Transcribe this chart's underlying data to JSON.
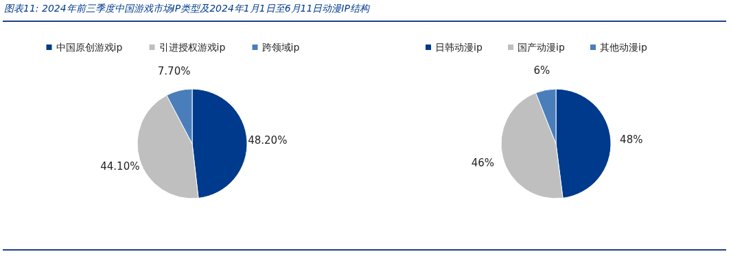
{
  "chart_data": [
    {
      "type": "pie",
      "title": "图表11:  2024年前三季度中国游戏市场IP类型及2024年1月1日至6月11日动漫IP结构",
      "categories": [
        "中国原创游戏ip",
        "引进授权游戏ip",
        "跨领域ip"
      ],
      "values": [
        48.2,
        44.1,
        7.7
      ],
      "colors": [
        "#003a8c",
        "#bfbfbf",
        "#4a7ebb"
      ],
      "value_labels": [
        "48.20%",
        "44.10%",
        "7.70%"
      ],
      "legend": "top"
    },
    {
      "type": "pie",
      "categories": [
        "日韩动漫ip",
        "国产动漫ip",
        "其他动漫ip"
      ],
      "values": [
        48,
        46,
        6
      ],
      "colors": [
        "#003a8c",
        "#bfbfbf",
        "#4a7ebb"
      ],
      "value_labels": [
        "48%",
        "46%",
        "6%"
      ],
      "legend": "top"
    }
  ]
}
